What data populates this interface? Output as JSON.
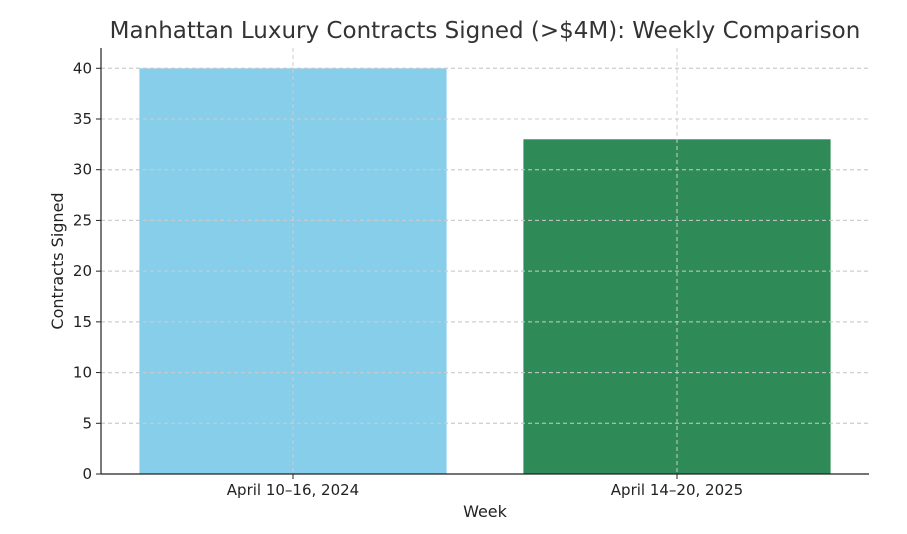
{
  "chart_data": {
    "type": "bar",
    "title": "Manhattan Luxury Contracts Signed (>$4M): Weekly Comparison",
    "xlabel": "Week",
    "ylabel": "Contracts Signed",
    "categories": [
      "April 10–16, 2024",
      "April 14–20, 2025"
    ],
    "values": [
      40,
      33
    ],
    "colors": [
      "#87ceeb",
      "#2e8b57"
    ],
    "ylim": [
      0,
      42
    ],
    "yticks": [
      0,
      5,
      10,
      15,
      20,
      25,
      30,
      35,
      40
    ],
    "grid": true
  }
}
